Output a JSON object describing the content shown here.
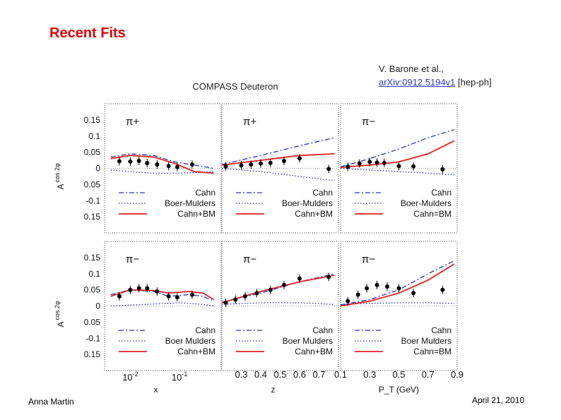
{
  "slide": {
    "title": "Recent Fits",
    "reference_line1": "V. Barone et al.,",
    "reference_link": "arXiv:0912.5194v1",
    "reference_suffix": " [hep-ph]",
    "footer_left": "Anna Martin",
    "footer_right": "April 21, 2010"
  },
  "colors": {
    "title": "#e00000",
    "fit": "#e02020",
    "cahn": "#2233bb",
    "bm": "#2233bb",
    "data": "#000000"
  },
  "chart_data": {
    "type": "line",
    "title": "COMPASS Deuteron",
    "ylabel": "A^{cos 2φ}",
    "ylim": [
      -0.2,
      0.2
    ],
    "yticks": [
      "0.15",
      "0.1",
      "0.05",
      "0",
      "0.05",
      "-0.1",
      "0.15"
    ],
    "columns": [
      {
        "xlabel": "x",
        "ticks": [
          "10^-2",
          "10^-1"
        ],
        "log": true,
        "xlim": [
          0.003,
          0.7
        ]
      },
      {
        "xlabel": "z",
        "ticks": [
          "0.3",
          "0.4",
          "0.5",
          "0.6",
          "0.7"
        ],
        "log": false,
        "xlim": [
          0.2,
          0.8
        ]
      },
      {
        "xlabel": "P_T (GeV)",
        "ticks": [
          "0.1",
          "0.3",
          "0.5",
          "0.7",
          "0.9"
        ],
        "log": false,
        "xlim": [
          0.1,
          0.9
        ]
      }
    ],
    "legend": [
      "Cahn",
      "Boer-Mulders",
      "Cahn+BM"
    ],
    "legend_rows": [
      [
        "Cahn",
        "Boer-Mulders",
        "Cahn+BM"
      ],
      [
        "Cahn",
        "Boer-Mulders",
        "Cahn+BM"
      ],
      [
        "Cahn",
        "Boer-Mulders",
        "Cahn=BM"
      ],
      [
        "Cahn",
        "Boer Mulders",
        "Cahn+BM"
      ],
      [
        "Cahn",
        "Boer Mulders",
        "Cahn+BM"
      ],
      [
        "Cahn",
        "Boer Mulders",
        "Cahn=BM"
      ]
    ],
    "panels": [
      {
        "label": "π+",
        "data": [
          [
            0.006,
            0.022
          ],
          [
            0.01,
            0.021
          ],
          [
            0.015,
            0.023
          ],
          [
            0.022,
            0.016
          ],
          [
            0.035,
            0.012
          ],
          [
            0.06,
            0.007
          ],
          [
            0.09,
            0.004
          ],
          [
            0.18,
            0.012
          ]
        ],
        "fit": [
          [
            0.004,
            0.03
          ],
          [
            0.01,
            0.04
          ],
          [
            0.03,
            0.035
          ],
          [
            0.08,
            0.015
          ],
          [
            0.2,
            -0.01
          ],
          [
            0.5,
            -0.015
          ]
        ],
        "cahn": [
          [
            0.004,
            0.035
          ],
          [
            0.01,
            0.045
          ],
          [
            0.03,
            0.04
          ],
          [
            0.08,
            0.02
          ],
          [
            0.2,
            0.01
          ],
          [
            0.5,
            0.0
          ]
        ],
        "bm": [
          [
            0.004,
            -0.005
          ],
          [
            0.01,
            -0.01
          ],
          [
            0.03,
            -0.015
          ],
          [
            0.1,
            -0.015
          ],
          [
            0.3,
            -0.012
          ],
          [
            0.5,
            -0.01
          ]
        ]
      },
      {
        "label": "π+",
        "data": [
          [
            0.22,
            0.006
          ],
          [
            0.3,
            0.009
          ],
          [
            0.35,
            0.012
          ],
          [
            0.4,
            0.015
          ],
          [
            0.45,
            0.017
          ],
          [
            0.52,
            0.023
          ],
          [
            0.6,
            0.031
          ],
          [
            0.75,
            -0.002
          ]
        ],
        "fit": [
          [
            0.2,
            0.01
          ],
          [
            0.4,
            0.025
          ],
          [
            0.6,
            0.04
          ],
          [
            0.78,
            0.045
          ]
        ],
        "cahn": [
          [
            0.2,
            0.012
          ],
          [
            0.4,
            0.04
          ],
          [
            0.6,
            0.07
          ],
          [
            0.78,
            0.095
          ]
        ],
        "bm": [
          [
            0.2,
            0.0
          ],
          [
            0.4,
            -0.01
          ],
          [
            0.6,
            -0.025
          ],
          [
            0.78,
            -0.038
          ]
        ]
      },
      {
        "label": "π−",
        "data": [
          [
            0.15,
            0.005
          ],
          [
            0.23,
            0.015
          ],
          [
            0.3,
            0.02
          ],
          [
            0.35,
            0.018
          ],
          [
            0.4,
            0.017
          ],
          [
            0.5,
            0.007
          ],
          [
            0.6,
            0.006
          ],
          [
            0.8,
            -0.003
          ]
        ],
        "fit": [
          [
            0.1,
            0.003
          ],
          [
            0.3,
            0.01
          ],
          [
            0.5,
            0.02
          ],
          [
            0.7,
            0.045
          ],
          [
            0.88,
            0.085
          ]
        ],
        "cahn": [
          [
            0.1,
            0.005
          ],
          [
            0.3,
            0.03
          ],
          [
            0.5,
            0.06
          ],
          [
            0.7,
            0.095
          ],
          [
            0.88,
            0.12
          ]
        ],
        "bm": [
          [
            0.1,
            0.0
          ],
          [
            0.3,
            -0.005
          ],
          [
            0.5,
            -0.01
          ],
          [
            0.7,
            -0.015
          ],
          [
            0.88,
            -0.02
          ]
        ]
      },
      {
        "label": "π−",
        "data": [
          [
            0.006,
            0.03
          ],
          [
            0.01,
            0.05
          ],
          [
            0.015,
            0.055
          ],
          [
            0.022,
            0.055
          ],
          [
            0.035,
            0.045
          ],
          [
            0.06,
            0.03
          ],
          [
            0.09,
            0.027
          ],
          [
            0.18,
            0.035
          ]
        ],
        "fit": [
          [
            0.004,
            0.03
          ],
          [
            0.01,
            0.05
          ],
          [
            0.03,
            0.048
          ],
          [
            0.06,
            0.04
          ],
          [
            0.15,
            0.045
          ],
          [
            0.3,
            0.04
          ],
          [
            0.5,
            0.02
          ]
        ],
        "cahn": [
          [
            0.004,
            0.035
          ],
          [
            0.01,
            0.05
          ],
          [
            0.03,
            0.045
          ],
          [
            0.06,
            0.03
          ],
          [
            0.15,
            0.035
          ],
          [
            0.3,
            0.03
          ],
          [
            0.5,
            0.015
          ]
        ],
        "bm": [
          [
            0.004,
            0.0
          ],
          [
            0.02,
            0.005
          ],
          [
            0.1,
            0.01
          ],
          [
            0.3,
            0.005
          ],
          [
            0.5,
            0.0
          ]
        ]
      },
      {
        "label": "π−",
        "data": [
          [
            0.22,
            0.01
          ],
          [
            0.27,
            0.02
          ],
          [
            0.32,
            0.03
          ],
          [
            0.38,
            0.04
          ],
          [
            0.45,
            0.05
          ],
          [
            0.52,
            0.065
          ],
          [
            0.6,
            0.085
          ],
          [
            0.75,
            0.09
          ]
        ],
        "fit": [
          [
            0.2,
            0.01
          ],
          [
            0.4,
            0.045
          ],
          [
            0.6,
            0.075
          ],
          [
            0.78,
            0.095
          ]
        ],
        "cahn": [
          [
            0.2,
            0.012
          ],
          [
            0.4,
            0.04
          ],
          [
            0.6,
            0.075
          ],
          [
            0.78,
            0.1
          ]
        ],
        "bm": [
          [
            0.2,
            0.005
          ],
          [
            0.4,
            0.01
          ],
          [
            0.6,
            0.01
          ],
          [
            0.78,
            0.005
          ]
        ]
      },
      {
        "label": "π−",
        "data": [
          [
            0.15,
            0.015
          ],
          [
            0.22,
            0.035
          ],
          [
            0.28,
            0.055
          ],
          [
            0.35,
            0.065
          ],
          [
            0.42,
            0.06
          ],
          [
            0.5,
            0.055
          ],
          [
            0.6,
            0.04
          ],
          [
            0.8,
            0.05
          ]
        ],
        "fit": [
          [
            0.1,
            0.0
          ],
          [
            0.3,
            0.015
          ],
          [
            0.5,
            0.04
          ],
          [
            0.7,
            0.08
          ],
          [
            0.88,
            0.13
          ]
        ],
        "cahn": [
          [
            0.1,
            0.003
          ],
          [
            0.3,
            0.02
          ],
          [
            0.5,
            0.05
          ],
          [
            0.7,
            0.1
          ],
          [
            0.88,
            0.14
          ]
        ],
        "bm": [
          [
            0.1,
            0.005
          ],
          [
            0.3,
            0.008
          ],
          [
            0.5,
            0.01
          ],
          [
            0.7,
            0.01
          ],
          [
            0.88,
            0.008
          ]
        ]
      }
    ]
  }
}
